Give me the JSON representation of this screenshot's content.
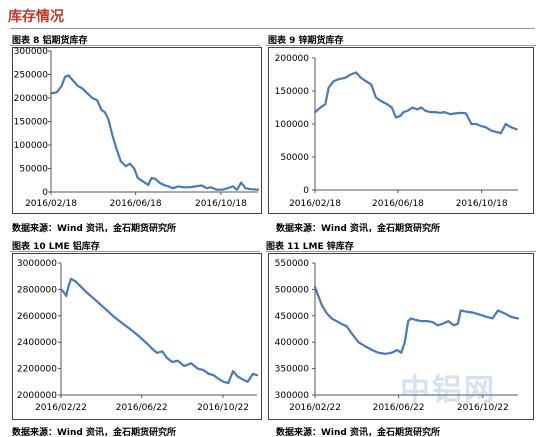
{
  "page": {
    "section_title": "库存情况",
    "watermark": "中铝网"
  },
  "panels": [
    {
      "title": "图表 8 铝期货库存",
      "source": "数据来源：Wind 资讯，金石期货研究所",
      "yticks": [
        "300000",
        "250000",
        "200000",
        "150000",
        "100000",
        "50000",
        "0"
      ],
      "xticks": [
        "2016/02/18",
        "2016/06/18",
        "2016/10/18"
      ]
    },
    {
      "title": "图表 9 锌期货库存",
      "source": "数据来源：Wind 资讯，金石期货研究所",
      "yticks": [
        "200000",
        "150000",
        "100000",
        "50000",
        "0"
      ],
      "xticks": [
        "2016/02/18",
        "2016/06/18",
        "2016/10/18"
      ]
    },
    {
      "title": "图表 10 LME 铝库存",
      "source": "数据来源：Wind 资讯，金石期货研究所",
      "yticks": [
        "3000000",
        "2800000",
        "2600000",
        "2400000",
        "2200000",
        "2000000"
      ],
      "xticks": [
        "2016/02/22",
        "2016/06/22",
        "2016/10/22"
      ]
    },
    {
      "title": "图表 11 LME 锌库存",
      "source": "数据来源：Wind 资讯，金石期货研究所",
      "yticks": [
        "550000",
        "500000",
        "450000",
        "400000",
        "350000",
        "300000"
      ],
      "xticks": [
        "2016/02/22",
        "2016/06/22",
        "2016/10/22"
      ]
    }
  ],
  "chart_data": [
    {
      "type": "line",
      "title": "图表 8 铝期货库存",
      "ylim": [
        0,
        300000
      ],
      "xlim": [
        "2016/02/18",
        "2016/12/10"
      ],
      "grid": false,
      "line_color": "#4a7ab5",
      "x": [
        "2016/02/18",
        "2016/02/26",
        "2016/03/04",
        "2016/03/09",
        "2016/03/14",
        "2016/03/20",
        "2016/03/27",
        "2016/04/03",
        "2016/04/10",
        "2016/04/17",
        "2016/04/24",
        "2016/04/30",
        "2016/05/05",
        "2016/05/10",
        "2016/05/16",
        "2016/05/22",
        "2016/05/28",
        "2016/06/04",
        "2016/06/10",
        "2016/06/16",
        "2016/06/21",
        "2016/06/26",
        "2016/07/01",
        "2016/07/06",
        "2016/07/11",
        "2016/07/16",
        "2016/07/22",
        "2016/07/28",
        "2016/08/04",
        "2016/08/10",
        "2016/08/18",
        "2016/08/26",
        "2016/09/03",
        "2016/09/12",
        "2016/09/20",
        "2016/09/28",
        "2016/10/04",
        "2016/10/12",
        "2016/10/20",
        "2016/10/28",
        "2016/11/04",
        "2016/11/10",
        "2016/11/16",
        "2016/11/22",
        "2016/11/30",
        "2016/12/10"
      ],
      "values": [
        210000,
        212000,
        225000,
        245000,
        248000,
        238000,
        226000,
        220000,
        210000,
        200000,
        195000,
        175000,
        170000,
        155000,
        120000,
        90000,
        65000,
        55000,
        60000,
        50000,
        30000,
        25000,
        20000,
        15000,
        30000,
        28000,
        20000,
        15000,
        12000,
        8000,
        12000,
        10000,
        10000,
        12000,
        14000,
        8000,
        10000,
        5000,
        5000,
        8000,
        12000,
        5000,
        20000,
        8000,
        6000,
        5000
      ]
    },
    {
      "type": "line",
      "title": "图表 9 锌期货库存",
      "ylim": [
        0,
        200000
      ],
      "xlim": [
        "2016/02/18",
        "2016/12/10"
      ],
      "grid": false,
      "line_color": "#4a7ab5",
      "x": [
        "2016/02/18",
        "2016/02/26",
        "2016/03/04",
        "2016/03/09",
        "2016/03/16",
        "2016/03/24",
        "2016/04/02",
        "2016/04/10",
        "2016/04/18",
        "2016/04/25",
        "2016/05/02",
        "2016/05/10",
        "2016/05/17",
        "2016/05/24",
        "2016/06/02",
        "2016/06/09",
        "2016/06/15",
        "2016/06/21",
        "2016/06/26",
        "2016/07/02",
        "2016/07/09",
        "2016/07/16",
        "2016/07/22",
        "2016/07/28",
        "2016/08/04",
        "2016/08/11",
        "2016/08/18",
        "2016/08/25",
        "2016/09/02",
        "2016/09/10",
        "2016/09/18",
        "2016/09/25",
        "2016/10/03",
        "2016/10/10",
        "2016/10/17",
        "2016/10/24",
        "2016/11/01",
        "2016/11/08",
        "2016/11/15",
        "2016/11/22",
        "2016/11/30",
        "2016/12/08"
      ],
      "values": [
        118000,
        125000,
        130000,
        155000,
        165000,
        168000,
        170000,
        175000,
        178000,
        170000,
        165000,
        160000,
        140000,
        135000,
        130000,
        125000,
        110000,
        112000,
        118000,
        120000,
        125000,
        122000,
        125000,
        120000,
        118000,
        118000,
        117000,
        118000,
        115000,
        116000,
        117000,
        116000,
        100000,
        100000,
        97000,
        95000,
        90000,
        88000,
        86000,
        100000,
        95000,
        92000
      ]
    },
    {
      "type": "line",
      "title": "图表 10 LME 铝库存",
      "ylim": [
        2000000,
        3000000
      ],
      "xlim": [
        "2016/02/22",
        "2016/12/12"
      ],
      "grid": false,
      "line_color": "#4a7ab5",
      "x": [
        "2016/02/22",
        "2016/02/26",
        "2016/03/01",
        "2016/03/04",
        "2016/03/08",
        "2016/03/15",
        "2016/03/23",
        "2016/03/31",
        "2016/04/09",
        "2016/04/18",
        "2016/04/29",
        "2016/05/12",
        "2016/05/25",
        "2016/06/07",
        "2016/06/19",
        "2016/06/30",
        "2016/07/08",
        "2016/07/15",
        "2016/07/23",
        "2016/07/30",
        "2016/08/07",
        "2016/08/15",
        "2016/08/25",
        "2016/09/04",
        "2016/09/14",
        "2016/09/22",
        "2016/10/01",
        "2016/10/08",
        "2016/10/16",
        "2016/10/23",
        "2016/10/30",
        "2016/11/06",
        "2016/11/13",
        "2016/11/20",
        "2016/11/28",
        "2016/12/06",
        "2016/12/12"
      ],
      "values": [
        2800000,
        2780000,
        2750000,
        2820000,
        2880000,
        2860000,
        2820000,
        2780000,
        2740000,
        2700000,
        2650000,
        2590000,
        2540000,
        2490000,
        2440000,
        2390000,
        2350000,
        2320000,
        2330000,
        2280000,
        2250000,
        2260000,
        2220000,
        2240000,
        2200000,
        2190000,
        2160000,
        2150000,
        2120000,
        2100000,
        2090000,
        2180000,
        2140000,
        2120000,
        2100000,
        2160000,
        2150000
      ]
    },
    {
      "type": "line",
      "title": "图表 11 LME 锌库存",
      "ylim": [
        300000,
        550000
      ],
      "xlim": [
        "2016/02/22",
        "2016/12/12"
      ],
      "grid": false,
      "line_color": "#4a7ab5",
      "x": [
        "2016/02/22",
        "2016/02/26",
        "2016/03/03",
        "2016/03/10",
        "2016/03/17",
        "2016/03/24",
        "2016/03/31",
        "2016/04/08",
        "2016/04/16",
        "2016/04/25",
        "2016/05/05",
        "2016/05/15",
        "2016/05/24",
        "2016/06/03",
        "2016/06/12",
        "2016/06/20",
        "2016/06/26",
        "2016/07/01",
        "2016/07/06",
        "2016/07/10",
        "2016/07/17",
        "2016/07/25",
        "2016/08/02",
        "2016/08/10",
        "2016/08/18",
        "2016/08/25",
        "2016/09/02",
        "2016/09/10",
        "2016/09/16",
        "2016/09/20",
        "2016/09/28",
        "2016/10/08",
        "2016/10/18",
        "2016/10/28",
        "2016/11/05",
        "2016/11/13",
        "2016/11/22",
        "2016/12/02",
        "2016/12/12"
      ],
      "values": [
        505000,
        490000,
        470000,
        455000,
        445000,
        440000,
        435000,
        430000,
        415000,
        400000,
        392000,
        385000,
        380000,
        378000,
        380000,
        385000,
        380000,
        400000,
        440000,
        445000,
        442000,
        440000,
        440000,
        438000,
        432000,
        435000,
        440000,
        432000,
        435000,
        460000,
        458000,
        456000,
        452000,
        448000,
        445000,
        460000,
        455000,
        448000,
        445000
      ]
    }
  ]
}
